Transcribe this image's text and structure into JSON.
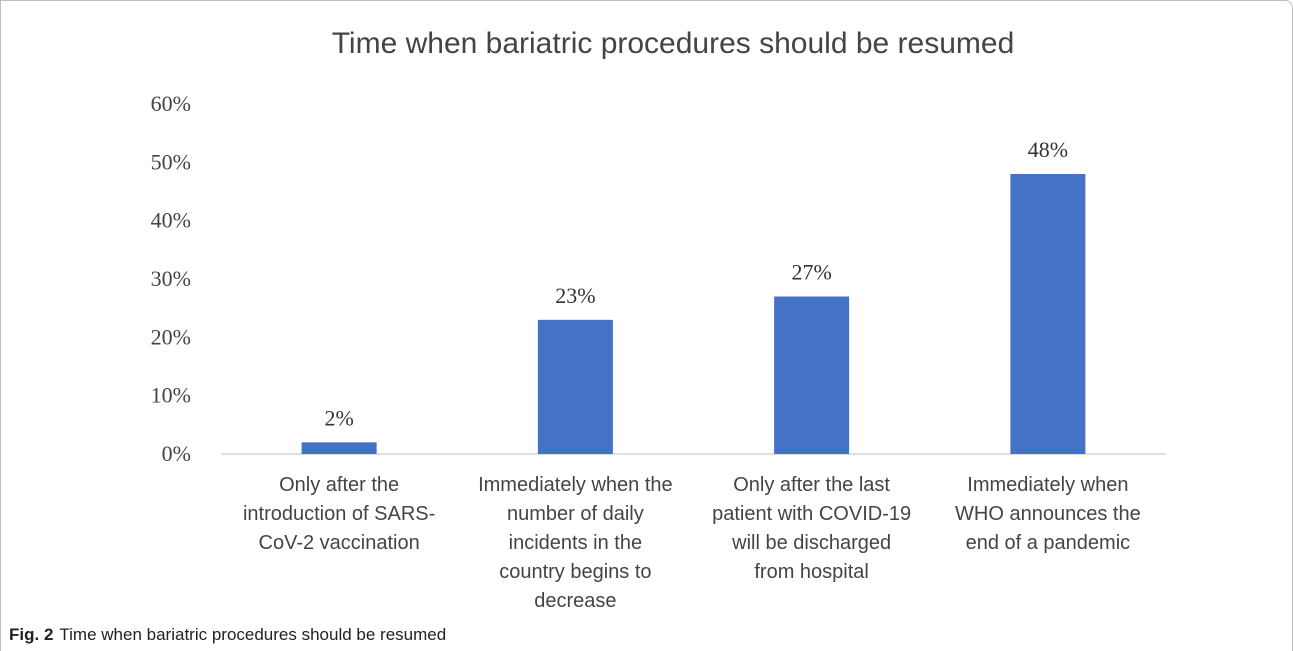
{
  "chart_data": {
    "type": "bar",
    "title": "Time when bariatric procedures should be resumed",
    "categories": [
      [
        "Only after the",
        "introduction of SARS-",
        "CoV-2 vaccination"
      ],
      [
        "Immediately when the",
        "number of daily",
        "incidents in the",
        "country begins to",
        "decrease"
      ],
      [
        "Only after the last",
        "patient with COVID-19",
        "will be discharged",
        "from hospital"
      ],
      [
        "Immediately when",
        "WHO announces the",
        "end of a pandemic"
      ]
    ],
    "values": [
      2,
      23,
      27,
      48
    ],
    "data_labels": [
      "2%",
      "23%",
      "27%",
      "48%"
    ],
    "yticks": [
      "0%",
      "10%",
      "20%",
      "30%",
      "40%",
      "50%",
      "60%"
    ],
    "ylim": [
      0,
      60
    ],
    "bar_color": "#4472c4",
    "grid": false,
    "legend": false
  },
  "caption": {
    "label": "Fig. 2",
    "text": "Time when bariatric procedures should be resumed"
  }
}
